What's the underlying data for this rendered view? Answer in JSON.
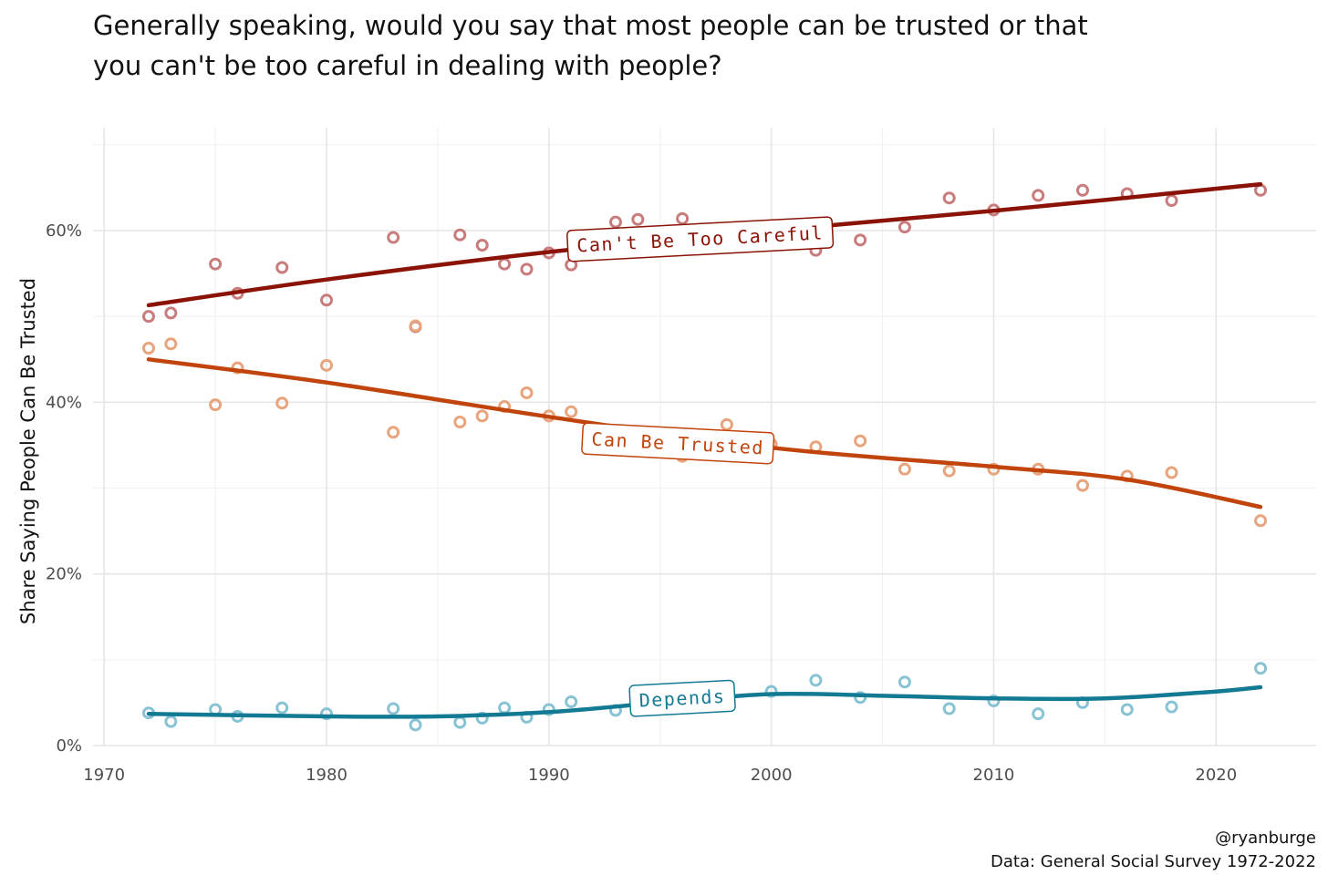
{
  "title": {
    "line1": "Generally speaking, would you say that most people can be trusted or that",
    "line2": "you can't be too careful in dealing with people?"
  },
  "caption": {
    "handle": "@ryanburge",
    "source": "Data: General Social Survey 1972-2022"
  },
  "chart_data": {
    "type": "scatter",
    "title": "Generally speaking, would you say that most people can be trusted or that you can't be too careful in dealing with people?",
    "xlabel": "",
    "ylabel": "Share Saying People Can Be Trusted",
    "xlim": [
      1969.5,
      2024.5
    ],
    "ylim": [
      0,
      0.72
    ],
    "x_ticks": [
      1970,
      1980,
      1990,
      2000,
      2010,
      2020
    ],
    "x_tick_labels": [
      "1970",
      "1980",
      "1990",
      "2000",
      "2010",
      "2020"
    ],
    "y_ticks": [
      0,
      0.2,
      0.4,
      0.6
    ],
    "y_tick_labels": [
      "0%",
      "20%",
      "40%",
      "60%"
    ],
    "grid": true,
    "legend": "none",
    "series": [
      {
        "name": "Can't Be Too Careful",
        "color": "#8b1206",
        "point_color": "#c87c7c",
        "x": [
          1972,
          1973,
          1975,
          1976,
          1978,
          1980,
          1983,
          1984,
          1986,
          1987,
          1988,
          1989,
          1990,
          1991,
          1993,
          1994,
          1996,
          1998,
          2000,
          2002,
          2004,
          2006,
          2008,
          2010,
          2012,
          2014,
          2016,
          2018,
          2022
        ],
        "values": [
          0.5,
          0.504,
          0.561,
          0.527,
          0.557,
          0.519,
          0.592,
          0.488,
          0.595,
          0.583,
          0.561,
          0.555,
          0.574,
          0.56,
          0.61,
          0.613,
          0.614,
          0.6,
          0.59,
          0.577,
          0.589,
          0.604,
          0.638,
          0.624,
          0.641,
          0.647,
          0.643,
          0.635,
          0.647
        ],
        "trend_x": [
          1972,
          1980,
          1990,
          2000,
          2010,
          2022
        ],
        "trend_y": [
          0.513,
          0.543,
          0.575,
          0.6,
          0.623,
          0.654
        ]
      },
      {
        "name": "Can Be Trusted",
        "color": "#c0440c",
        "point_color": "#e8a47c",
        "x": [
          1972,
          1973,
          1975,
          1976,
          1978,
          1980,
          1983,
          1984,
          1986,
          1987,
          1988,
          1989,
          1990,
          1991,
          1993,
          1994,
          1996,
          1998,
          2000,
          2002,
          2004,
          2006,
          2008,
          2010,
          2012,
          2014,
          2016,
          2018,
          2022
        ],
        "values": [
          0.463,
          0.468,
          0.397,
          0.44,
          0.399,
          0.443,
          0.365,
          0.489,
          0.377,
          0.384,
          0.395,
          0.411,
          0.384,
          0.389,
          0.352,
          0.345,
          0.337,
          0.374,
          0.351,
          0.348,
          0.355,
          0.322,
          0.32,
          0.322,
          0.322,
          0.303,
          0.314,
          0.318,
          0.262
        ],
        "trend_x": [
          1972,
          1980,
          1990,
          2000,
          2010,
          2016,
          2022
        ],
        "trend_y": [
          0.45,
          0.423,
          0.383,
          0.347,
          0.325,
          0.31,
          0.278
        ]
      },
      {
        "name": "Depends",
        "color": "#137a94",
        "point_color": "#88c3d3",
        "x": [
          1972,
          1973,
          1975,
          1976,
          1978,
          1980,
          1983,
          1984,
          1986,
          1987,
          1988,
          1989,
          1990,
          1991,
          1993,
          1994,
          1996,
          1998,
          2000,
          2002,
          2004,
          2006,
          2008,
          2010,
          2012,
          2014,
          2016,
          2018,
          2022
        ],
        "values": [
          0.038,
          0.028,
          0.042,
          0.034,
          0.044,
          0.037,
          0.043,
          0.024,
          0.027,
          0.032,
          0.044,
          0.033,
          0.042,
          0.051,
          0.041,
          0.044,
          0.049,
          0.056,
          0.063,
          0.076,
          0.056,
          0.074,
          0.043,
          0.052,
          0.037,
          0.05,
          0.042,
          0.045,
          0.09
        ],
        "trend_x": [
          1972,
          1980,
          1985,
          1990,
          1995,
          2000,
          2005,
          2010,
          2015,
          2020,
          2022
        ],
        "trend_y": [
          0.037,
          0.034,
          0.034,
          0.039,
          0.05,
          0.06,
          0.058,
          0.055,
          0.055,
          0.063,
          0.068
        ]
      }
    ],
    "annotations": [
      {
        "text": "Can't Be Too Careful",
        "series": 0,
        "x": 1996.8,
        "y": 0.59,
        "angle": -3,
        "color": "#8b1206",
        "border": "#8b1206"
      },
      {
        "text": "Can Be Trusted",
        "series": 1,
        "x": 1995.8,
        "y": 0.352,
        "angle": 3,
        "color": "#c0440c",
        "border": "#c0440c"
      },
      {
        "text": "Depends",
        "series": 2,
        "x": 1996.0,
        "y": 0.055,
        "angle": -3,
        "color": "#137a94",
        "border": "#137a94"
      }
    ]
  }
}
